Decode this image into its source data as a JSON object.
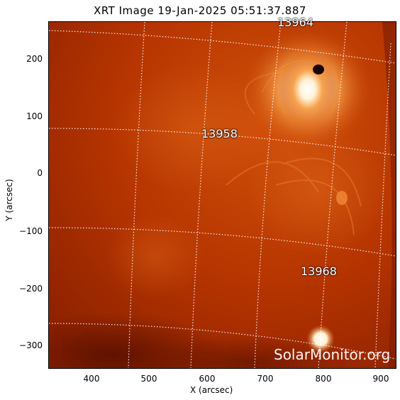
{
  "title": "XRT Image 19-Jan-2025 05:51:37.887",
  "x_axis": {
    "label": "X (arcsec)",
    "ticks": [
      "400",
      "500",
      "600",
      "700",
      "800",
      "900"
    ]
  },
  "y_axis": {
    "label": "Y (arcsec)",
    "ticks": [
      "200",
      "100",
      "0",
      "−100",
      "−200",
      "−300"
    ]
  },
  "regions": [
    "13964",
    "13958",
    "13968"
  ],
  "watermark": "SolarMonitor.org",
  "colors": {
    "background": "#b83400",
    "highlight": "#ffffff",
    "dark_region": "#6a1400"
  }
}
